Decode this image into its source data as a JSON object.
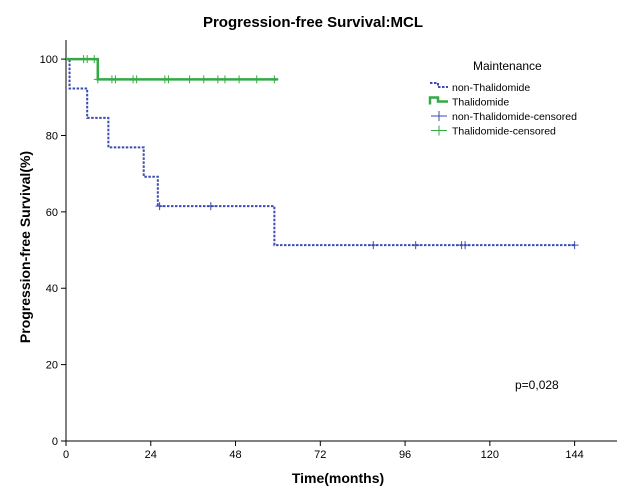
{
  "chart_data": {
    "type": "line",
    "subtype": "kaplan-meier",
    "title": "Progression-free Survival:MCL",
    "xlabel": "Time(months)",
    "ylabel": "Progression-free Survival(%)",
    "xlim": [
      0,
      156
    ],
    "ylim": [
      0,
      105
    ],
    "xticks": [
      "0",
      "24",
      "48",
      "72",
      "96",
      "120",
      "144"
    ],
    "yticks": [
      "0",
      "20",
      "40",
      "60",
      "80",
      "100"
    ],
    "xtick_values": [
      0,
      24,
      48,
      72,
      96,
      120,
      144
    ],
    "ytick_values": [
      0,
      20,
      40,
      60,
      80,
      100
    ],
    "legend": {
      "title": "Maintenance",
      "entries": [
        "non-Thalidomide",
        "Thalidomide",
        "non-Thalidomide-censored",
        "Thalidomide-censored"
      ]
    },
    "annotation": "p=0,028",
    "series": [
      {
        "name": "non-Thalidomide",
        "color": "#3b4bb0",
        "style": "dashed",
        "steps": [
          [
            0,
            100
          ],
          [
            1,
            92.3
          ],
          [
            6,
            84.6
          ],
          [
            12,
            76.9
          ],
          [
            22,
            69.2
          ],
          [
            26,
            61.5
          ],
          [
            59,
            51.3
          ],
          [
            144,
            51.3
          ]
        ],
        "censored": [
          [
            26.5,
            61.5
          ],
          [
            41,
            61.5
          ],
          [
            87,
            51.3
          ],
          [
            99,
            51.3
          ],
          [
            112,
            51.3
          ],
          [
            113,
            51.3
          ],
          [
            144,
            51.3
          ]
        ]
      },
      {
        "name": "Thalidomide",
        "color": "#33aa44",
        "style": "solid",
        "steps": [
          [
            0,
            100
          ],
          [
            9,
            94.7
          ],
          [
            60,
            94.7
          ]
        ],
        "censored": [
          [
            5,
            100
          ],
          [
            6,
            100
          ],
          [
            8,
            100
          ],
          [
            9,
            94.7
          ],
          [
            13,
            94.7
          ],
          [
            14,
            94.7
          ],
          [
            19,
            94.7
          ],
          [
            20,
            94.7
          ],
          [
            28,
            94.7
          ],
          [
            29,
            94.7
          ],
          [
            35,
            94.7
          ],
          [
            39,
            94.7
          ],
          [
            43,
            94.7
          ],
          [
            45,
            94.7
          ],
          [
            49,
            94.7
          ],
          [
            54,
            94.7
          ],
          [
            59,
            94.7
          ]
        ]
      }
    ]
  }
}
